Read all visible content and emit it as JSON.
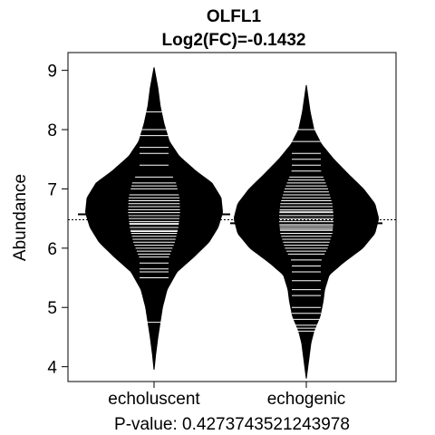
{
  "chart_data": {
    "type": "beanplot",
    "title": "OLFL1",
    "subtitle": "Log2(FC)=-0.1432",
    "ylabel": "Abundance",
    "xlabel": "P-value: 0.4273743521243978",
    "ylim": [
      3.75,
      9.3
    ],
    "yticks": [
      4,
      5,
      6,
      7,
      8,
      9
    ],
    "overall_mean": 6.48,
    "categories": [
      "echoluscent",
      "echogenic"
    ],
    "series": [
      {
        "name": "echoluscent",
        "mean": 6.57,
        "density": [
          [
            3.95,
            0.0
          ],
          [
            4.2,
            0.02
          ],
          [
            4.5,
            0.05
          ],
          [
            4.75,
            0.08
          ],
          [
            5.0,
            0.11
          ],
          [
            5.3,
            0.17
          ],
          [
            5.6,
            0.3
          ],
          [
            5.85,
            0.52
          ],
          [
            6.1,
            0.72
          ],
          [
            6.35,
            0.84
          ],
          [
            6.6,
            0.9
          ],
          [
            6.85,
            0.88
          ],
          [
            7.1,
            0.76
          ],
          [
            7.3,
            0.55
          ],
          [
            7.55,
            0.33
          ],
          [
            7.8,
            0.2
          ],
          [
            8.1,
            0.13
          ],
          [
            8.4,
            0.08
          ],
          [
            8.7,
            0.05
          ],
          [
            9.05,
            0.0
          ]
        ],
        "points": [
          4.75,
          5.5,
          5.6,
          5.65,
          5.75,
          5.85,
          5.9,
          5.95,
          6.0,
          6.05,
          6.1,
          6.15,
          6.2,
          6.25,
          6.28,
          6.3,
          6.35,
          6.4,
          6.42,
          6.45,
          6.5,
          6.55,
          6.6,
          6.65,
          6.7,
          6.75,
          6.8,
          6.85,
          6.9,
          7.0,
          7.05,
          7.1,
          7.2,
          7.4,
          7.6,
          7.7,
          7.9,
          8.0,
          8.3
        ]
      },
      {
        "name": "echogenic",
        "mean": 6.42,
        "density": [
          [
            3.8,
            0.0
          ],
          [
            4.1,
            0.03
          ],
          [
            4.4,
            0.06
          ],
          [
            4.6,
            0.1
          ],
          [
            4.85,
            0.18
          ],
          [
            5.1,
            0.22
          ],
          [
            5.3,
            0.24
          ],
          [
            5.55,
            0.3
          ],
          [
            5.75,
            0.48
          ],
          [
            6.0,
            0.74
          ],
          [
            6.25,
            0.9
          ],
          [
            6.5,
            0.95
          ],
          [
            6.75,
            0.9
          ],
          [
            7.0,
            0.75
          ],
          [
            7.25,
            0.55
          ],
          [
            7.5,
            0.36
          ],
          [
            7.75,
            0.2
          ],
          [
            8.0,
            0.1
          ],
          [
            8.3,
            0.05
          ],
          [
            8.75,
            0.0
          ]
        ],
        "points": [
          4.6,
          4.65,
          4.7,
          4.8,
          4.9,
          5.0,
          5.2,
          5.3,
          5.45,
          5.6,
          5.7,
          5.8,
          5.9,
          5.95,
          6.0,
          6.05,
          6.1,
          6.15,
          6.2,
          6.25,
          6.3,
          6.32,
          6.35,
          6.38,
          6.4,
          6.43,
          6.45,
          6.48,
          6.5,
          6.55,
          6.6,
          6.62,
          6.65,
          6.7,
          6.75,
          6.8,
          6.85,
          6.9,
          6.95,
          7.0,
          7.05,
          7.1,
          7.15,
          7.2,
          7.3,
          7.4,
          7.5,
          7.6,
          7.8,
          8.0
        ]
      }
    ]
  }
}
